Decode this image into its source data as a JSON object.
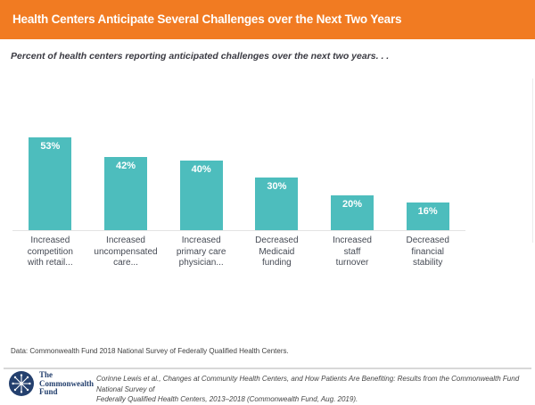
{
  "header": {
    "title": "Health Centers Anticipate Several Challenges over the Next Two Years",
    "bg_color": "#F17B22"
  },
  "subtitle": "Percent of health centers reporting anticipated challenges over the next two years. . .",
  "chart_data": {
    "type": "bar",
    "categories": [
      "Increased\ncompetition\nwith retail...",
      "Increased\nuncompensated\ncare...",
      "Increased\nprimary care\nphysician...",
      "Decreased\nMedicaid\nfunding",
      "Increased\nstaff\nturnover",
      "Decreased\nfinancial\nstability"
    ],
    "values": [
      53,
      42,
      40,
      30,
      20,
      16
    ],
    "value_labels": [
      "53%",
      "42%",
      "40%",
      "30%",
      "20%",
      "16%"
    ],
    "title": "Health Centers Anticipate Several Challenges over the Next Two Years",
    "xlabel": "",
    "ylabel": "",
    "grid": false,
    "legend": false,
    "bar_color": "#4DBDBD",
    "value_label_color": "#FFFFFF"
  },
  "footnote": "Data: Commonwealth Fund 2018 National Survey of Federally Qualified Health Centers.",
  "footer": {
    "logo": {
      "icon": "snowflake-icon",
      "text": "The\nCommonwealth\nFund",
      "color": "#24406E"
    },
    "citation_line1": "Corinne Lewis et al., Changes at Community Health Centers, and How Patients Are Benefiting: Results from the Commonwealth Fund National Survey of",
    "citation_line2": "Federally Qualified Health Centers, 2013–2018 (Commonwealth Fund, Aug. 2019)."
  },
  "colors": {
    "header_orange": "#F17B22",
    "bar_teal": "#4DBDBD",
    "logo_navy": "#24406E",
    "axis_gray": "#E3E3E3",
    "category_label_gray": "#454A54"
  }
}
